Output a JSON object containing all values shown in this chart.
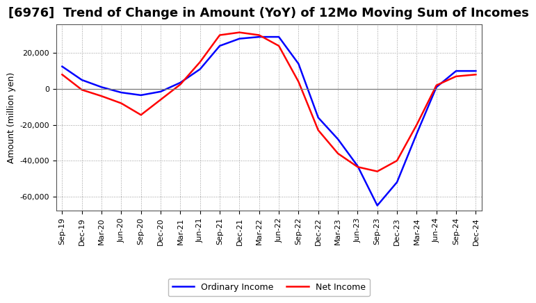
{
  "title": "[6976]  Trend of Change in Amount (YoY) of 12Mo Moving Sum of Incomes",
  "ylabel": "Amount (million yen)",
  "x_labels": [
    "Sep-19",
    "Dec-19",
    "Mar-20",
    "Jun-20",
    "Sep-20",
    "Dec-20",
    "Mar-21",
    "Jun-21",
    "Sep-21",
    "Dec-21",
    "Mar-22",
    "Jun-22",
    "Sep-22",
    "Dec-22",
    "Mar-23",
    "Jun-23",
    "Sep-23",
    "Dec-23",
    "Mar-24",
    "Jun-24",
    "Sep-24",
    "Dec-24"
  ],
  "ordinary_income": [
    12500,
    5000,
    1000,
    -2000,
    -3500,
    -1500,
    3500,
    11000,
    24000,
    28000,
    29000,
    29000,
    14000,
    -16000,
    -28000,
    -43000,
    -65000,
    -52000,
    -25000,
    1000,
    10000,
    10000
  ],
  "net_income": [
    8000,
    -500,
    -4000,
    -8000,
    -14500,
    -6000,
    2500,
    15000,
    30000,
    31500,
    30000,
    24000,
    4000,
    -23000,
    -36000,
    -43500,
    -46000,
    -40000,
    -20000,
    2000,
    7000,
    8000
  ],
  "ordinary_color": "#0000FF",
  "net_color": "#FF0000",
  "ylim": [
    -68000,
    36000
  ],
  "yticks": [
    -60000,
    -40000,
    -20000,
    0,
    20000
  ],
  "background_color": "#ffffff",
  "grid_color": "#999999",
  "line_width": 1.8,
  "title_fontsize": 13,
  "tick_fontsize": 8,
  "ylabel_fontsize": 9,
  "legend_fontsize": 9
}
